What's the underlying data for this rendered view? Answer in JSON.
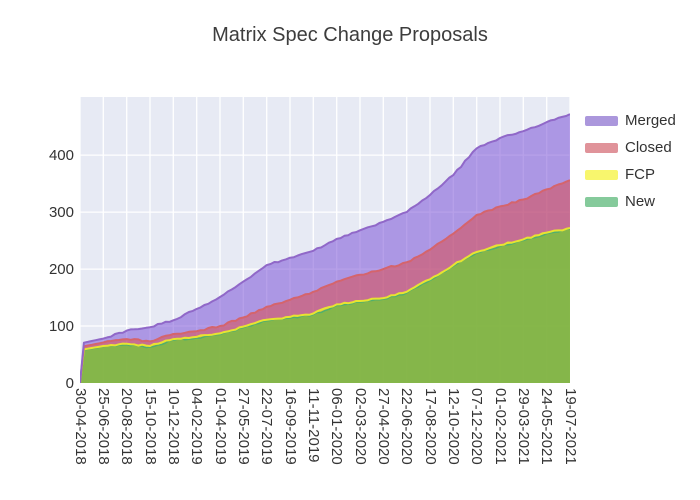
{
  "title": "Matrix Spec Change Proposals",
  "legend": {
    "items": [
      {
        "label": "Merged",
        "color": "#ab97dc"
      },
      {
        "label": "Closed",
        "color": "#e0939a"
      },
      {
        "label": "FCP",
        "color": "#f8f66d"
      },
      {
        "label": "New",
        "color": "#85ca9b"
      }
    ]
  },
  "axes": {
    "y_ticks": [
      0,
      100,
      200,
      300,
      400
    ],
    "x_ticks": [
      "30-04-2018",
      "25-06-2018",
      "20-08-2018",
      "15-10-2018",
      "10-12-2018",
      "04-02-2019",
      "01-04-2019",
      "27-05-2019",
      "22-07-2019",
      "16-09-2019",
      "11-11-2019",
      "06-01-2020",
      "02-03-2020",
      "27-04-2020",
      "22-06-2020",
      "17-08-2020",
      "12-10-2020",
      "07-12-2020",
      "01-02-2021",
      "29-03-2021",
      "24-05-2021",
      "19-07-2021"
    ]
  },
  "chart_data": {
    "type": "area",
    "stacked": true,
    "title": "Matrix Spec Change Proposals",
    "x": [
      "30-04-2018",
      "25-06-2018",
      "20-08-2018",
      "15-10-2018",
      "10-12-2018",
      "04-02-2019",
      "01-04-2019",
      "27-05-2019",
      "22-07-2019",
      "16-09-2019",
      "11-11-2019",
      "06-01-2020",
      "02-03-2020",
      "27-04-2020",
      "22-06-2020",
      "17-08-2020",
      "12-10-2020",
      "07-12-2020",
      "01-02-2021",
      "29-03-2021",
      "24-05-2021",
      "19-07-2021"
    ],
    "series": [
      {
        "name": "New",
        "fill": "rgba(54,176,82,0.55)",
        "line": "#4fb06d",
        "legend_color": "#85ca9b",
        "values": [
          0,
          64,
          67,
          63,
          75,
          79,
          85,
          97,
          109,
          114,
          120,
          136,
          142,
          147,
          158,
          180,
          205,
          228,
          240,
          250,
          262,
          270
        ]
      },
      {
        "name": "FCP",
        "fill": "rgba(255,255,0,0.55)",
        "line": "#e8e430",
        "legend_color": "#f8f66d",
        "values": [
          0,
          1,
          2,
          2,
          2,
          2,
          2,
          2,
          2,
          2,
          2,
          2,
          2,
          2,
          2,
          2,
          2,
          2,
          2,
          2,
          2,
          2
        ]
      },
      {
        "name": "Closed",
        "fill": "rgba(219,76,80,0.55)",
        "line": "#d5646c",
        "legend_color": "#e0939a",
        "values": [
          0,
          6,
          8,
          8,
          9,
          10,
          13,
          16,
          23,
          30,
          38,
          40,
          46,
          51,
          52,
          52,
          55,
          65,
          68,
          70,
          76,
          84
        ]
      },
      {
        "name": "Merged",
        "fill": "rgba(124,82,215,0.55)",
        "line": "#9068c8",
        "legend_color": "#ab97dc",
        "values": [
          0,
          7,
          15,
          25,
          24,
          39,
          51,
          63,
          73,
          74,
          72,
          75,
          78,
          83,
          88,
          96,
          103,
          117,
          120,
          120,
          118,
          116
        ]
      }
    ],
    "ylim": [
      0,
      502
    ],
    "grid": true,
    "plot_background": "#e7eaf4",
    "grid_color": "#ffffff",
    "legend_position": "right"
  }
}
